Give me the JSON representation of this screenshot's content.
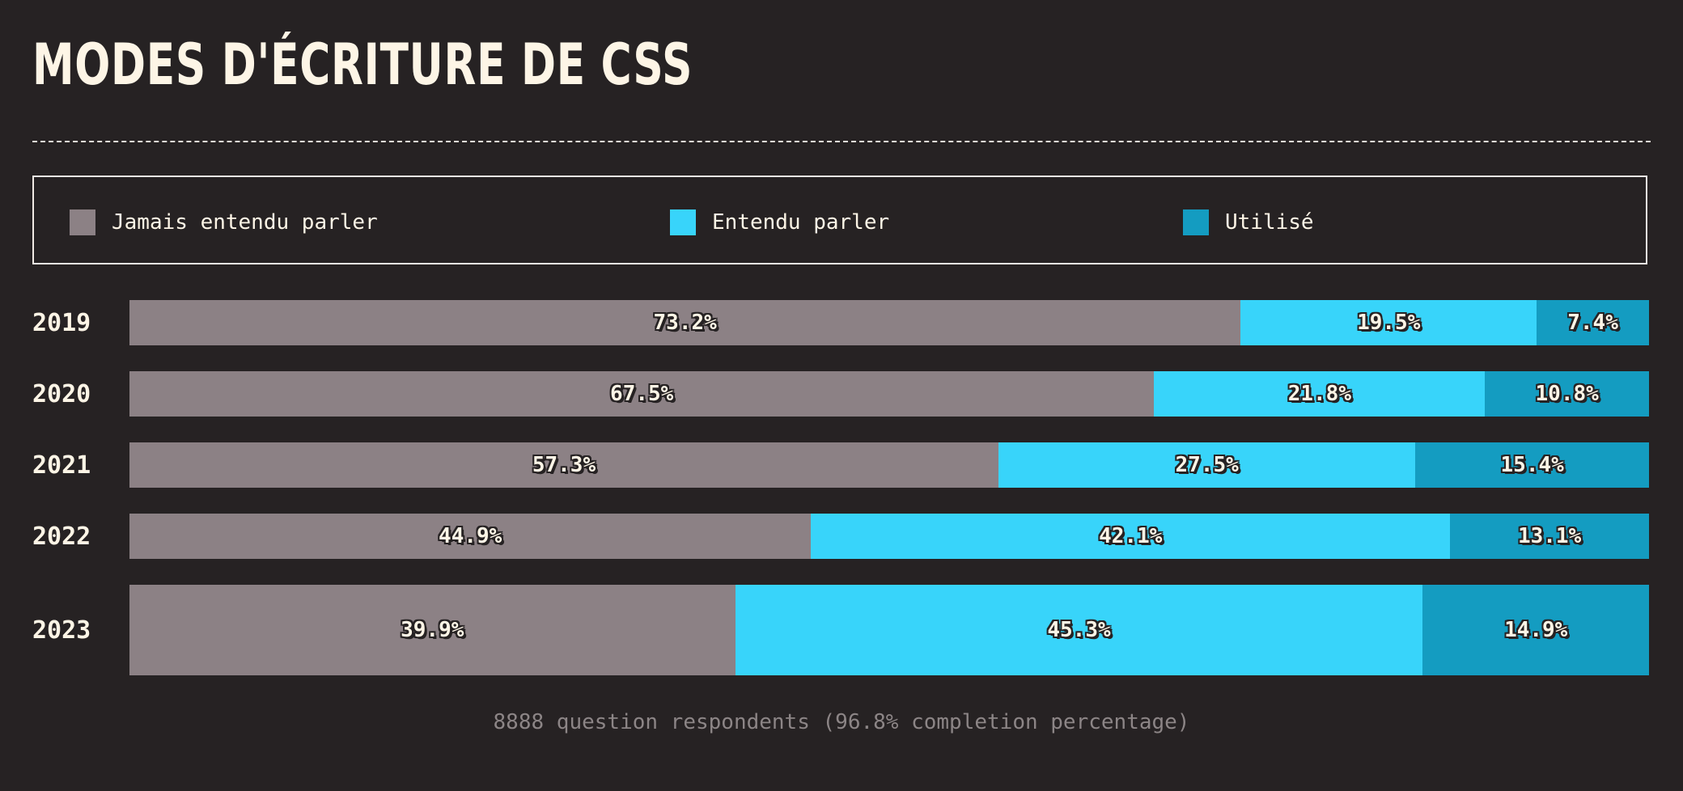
{
  "page": {
    "title": "MODES D'ÉCRITURE DE CSS",
    "footer": "8888 question respondents (96.8% completion percentage)"
  },
  "legend": [
    {
      "label": "Jamais entendu parler",
      "color": "#8c8185"
    },
    {
      "label": "Entendu parler",
      "color": "#38d4fa"
    },
    {
      "label": "Utilisé",
      "color": "#149cc1"
    }
  ],
  "chart_data": {
    "type": "bar",
    "orientation": "horizontal",
    "stacked": true,
    "title": "MODES D'ÉCRITURE DE CSS",
    "categories": [
      "2019",
      "2020",
      "2021",
      "2022",
      "2023"
    ],
    "series": [
      {
        "name": "Jamais entendu parler",
        "color": "#8c8185",
        "values": [
          73.2,
          67.5,
          57.3,
          44.9,
          39.9
        ]
      },
      {
        "name": "Entendu parler",
        "color": "#38d4fa",
        "values": [
          19.5,
          21.8,
          27.5,
          42.1,
          45.3
        ]
      },
      {
        "name": "Utilisé",
        "color": "#149cc1",
        "values": [
          7.4,
          10.8,
          15.4,
          13.1,
          14.9
        ]
      }
    ],
    "labels": [
      [
        "73.2%",
        "19.5%",
        "7.4%"
      ],
      [
        "67.5%",
        "21.8%",
        "10.8%"
      ],
      [
        "57.3%",
        "27.5%",
        "15.4%"
      ],
      [
        "44.9%",
        "42.1%",
        "13.1%"
      ],
      [
        "39.9%",
        "45.3%",
        "14.9%"
      ]
    ],
    "legend_position": "top",
    "grid": false
  }
}
